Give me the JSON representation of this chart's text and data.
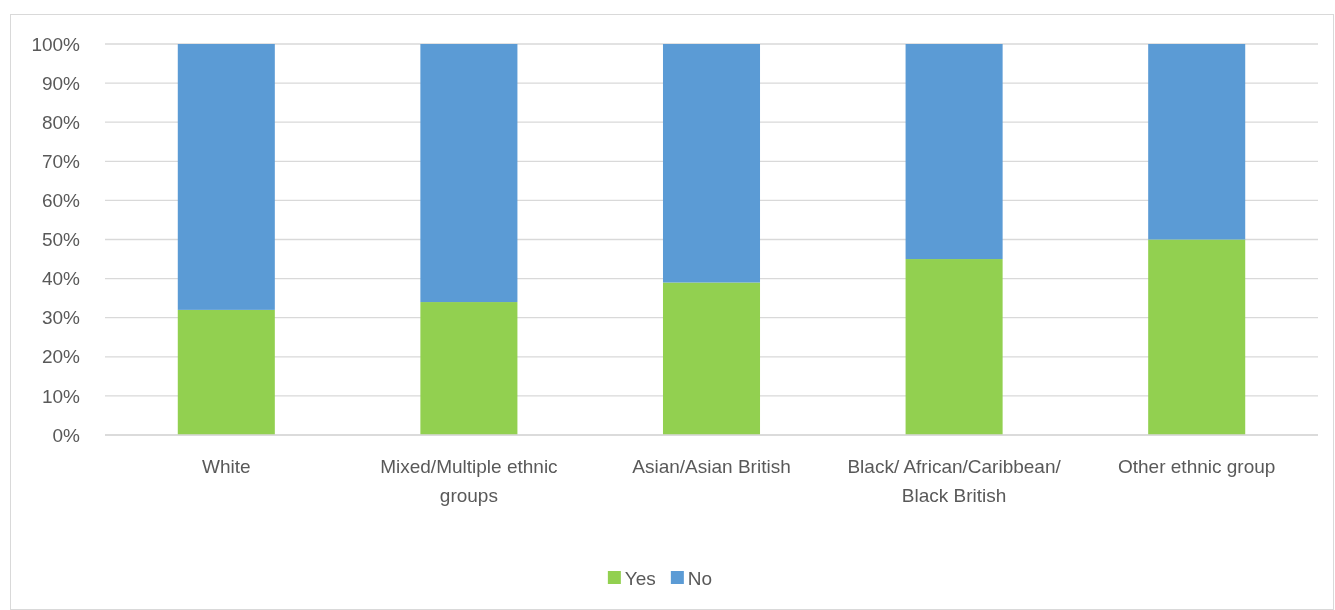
{
  "chart_data": {
    "type": "bar",
    "stacked": true,
    "categories": [
      "White",
      "Mixed/Multiple ethnic groups",
      "Asian/Asian British",
      "Black/ African/Caribbean/Black British",
      "Other ethnic group"
    ],
    "series": [
      {
        "name": "Yes",
        "color": "#92d050",
        "values": [
          32,
          34,
          39,
          45,
          50
        ]
      },
      {
        "name": "No",
        "color": "#5b9bd5",
        "values": [
          68,
          66,
          61,
          55,
          50
        ]
      }
    ],
    "ylim": [
      0,
      100
    ],
    "yticks": [
      {
        "value": 0,
        "label": "0%"
      },
      {
        "value": 10,
        "label": "10%"
      },
      {
        "value": 20,
        "label": "20%"
      },
      {
        "value": 30,
        "label": "30%"
      },
      {
        "value": 40,
        "label": "40%"
      },
      {
        "value": 50,
        "label": "50%"
      },
      {
        "value": 60,
        "label": "60%"
      },
      {
        "value": 70,
        "label": "70%"
      },
      {
        "value": 80,
        "label": "80%"
      },
      {
        "value": 90,
        "label": "90%"
      },
      {
        "value": 100,
        "label": "100%"
      }
    ],
    "grid": "y",
    "legend": "bottom"
  }
}
